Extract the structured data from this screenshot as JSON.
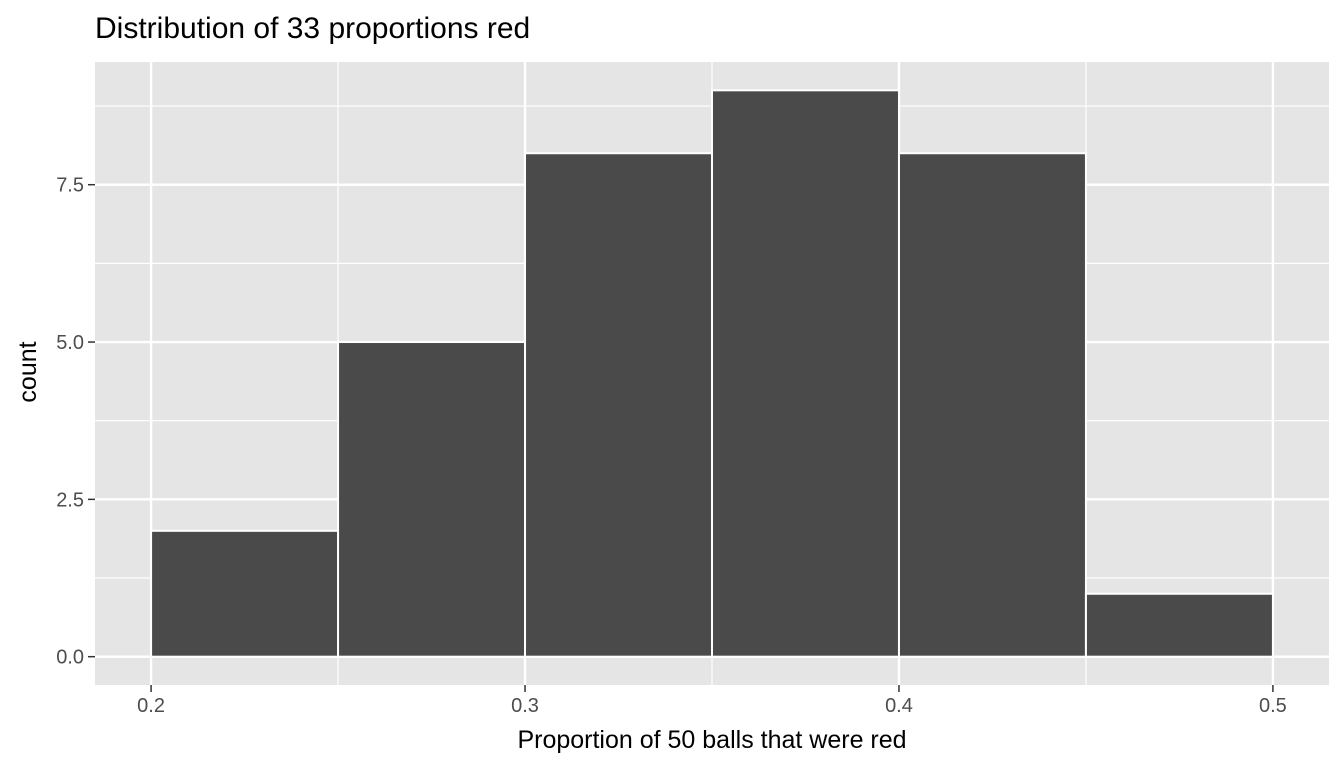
{
  "chart_data": {
    "type": "bar",
    "subtype": "histogram",
    "title": "Distribution of 33 proportions red",
    "xlabel": "Proportion of 50 balls that were red",
    "ylabel": "count",
    "bins": [
      {
        "start": 0.2,
        "end": 0.25,
        "count": 2
      },
      {
        "start": 0.25,
        "end": 0.3,
        "count": 5
      },
      {
        "start": 0.3,
        "end": 0.35,
        "count": 8
      },
      {
        "start": 0.35,
        "end": 0.4,
        "count": 9
      },
      {
        "start": 0.4,
        "end": 0.45,
        "count": 8
      },
      {
        "start": 0.45,
        "end": 0.5,
        "count": 1
      }
    ],
    "xlim": [
      0.185,
      0.515
    ],
    "ylim": [
      -0.45,
      9.45
    ],
    "x_ticks": [
      0.2,
      0.3,
      0.4,
      0.5
    ],
    "x_tick_labels": [
      "0.2",
      "0.3",
      "0.4",
      "0.5"
    ],
    "y_ticks": [
      0,
      2.5,
      5,
      7.5
    ],
    "y_tick_labels": [
      "0.0",
      "2.5",
      "5.0",
      "7.5"
    ],
    "grid": true,
    "colors": {
      "bar_fill": "#4a4a4a",
      "bar_stroke": "#ffffff",
      "panel_background": "#e5e5e5",
      "grid": "#ffffff"
    }
  }
}
